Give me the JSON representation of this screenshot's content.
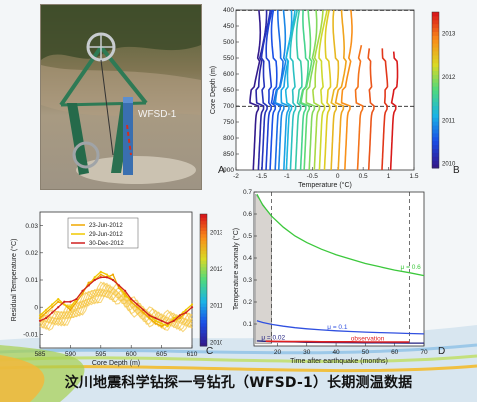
{
  "caption": "汶川地震科学钻探一号钻孔（WFSD-1）长期测温数据",
  "panels": {
    "a": {
      "letter": "A",
      "photo_label": "WFSD-1"
    },
    "b": {
      "letter": "B"
    },
    "c": {
      "letter": "C"
    },
    "d": {
      "letter": "D"
    }
  },
  "chart_data": [
    {
      "id": "B",
      "type": "line",
      "xlabel": "Temperature (°C)",
      "ylabel": "Core Depth (m)",
      "xlim": [
        -2,
        1.5
      ],
      "ylim": [
        400,
        900
      ],
      "y_inverted": true,
      "x_ticks": [
        -2,
        -1.5,
        -1,
        -0.5,
        0,
        0.5,
        1,
        1.5
      ],
      "y_ticks": [
        400,
        450,
        500,
        550,
        600,
        650,
        700,
        750,
        800,
        850,
        900
      ],
      "dashed_depths": [
        400,
        700
      ],
      "colorbar": {
        "ticks": [
          2010,
          2011,
          2012,
          2013
        ],
        "range": [
          2009.9,
          2013.5
        ]
      },
      "series_count": 24,
      "profile_x_offsets": [
        -1.55,
        -1.45,
        -1.38,
        -1.3,
        -1.22,
        -1.12,
        -1.05,
        -0.95,
        -0.9,
        -0.82,
        -0.72,
        -0.62,
        -0.55,
        -0.45,
        -0.35,
        -0.25,
        -0.15,
        -0.02,
        0.12,
        0.25,
        0.5,
        0.72,
        0.98,
        1.15
      ],
      "legend": "none"
    },
    {
      "id": "C",
      "type": "line",
      "xlabel": "Core Depth (m)",
      "ylabel": "Residual Temperature (°C)",
      "xlim": [
        585,
        610
      ],
      "ylim": [
        -0.015,
        0.035
      ],
      "x_ticks": [
        585,
        590,
        595,
        600,
        605,
        610
      ],
      "y_ticks": [
        -0.01,
        0,
        0.01,
        0.02,
        0.03
      ],
      "colorbar": {
        "ticks": [
          2010,
          2011,
          2012,
          2013
        ],
        "range": [
          2009.9,
          2013.5
        ]
      },
      "series": [
        {
          "name": "23-Jun-2012",
          "color": "#f0a800",
          "x": [
            585,
            586,
            587,
            588,
            589,
            590,
            591,
            592,
            593,
            594,
            595,
            596,
            597,
            598,
            599,
            600,
            601,
            602,
            603,
            604,
            605,
            606,
            607,
            608,
            609,
            610
          ],
          "y": [
            -0.004,
            -0.002,
            0.0,
            0.002,
            0.001,
            -0.001,
            0.002,
            0.005,
            0.009,
            0.01,
            0.012,
            0.011,
            0.012,
            0.007,
            0.005,
            0.002,
            0.0,
            -0.002,
            -0.004,
            -0.006,
            -0.007,
            -0.006,
            -0.005,
            -0.004,
            -0.002,
            0.0
          ]
        },
        {
          "name": "29-Jun-2012",
          "color": "#f0c800",
          "x": [
            585,
            586,
            587,
            588,
            589,
            590,
            591,
            592,
            593,
            594,
            595,
            596,
            597,
            598,
            599,
            600,
            601,
            602,
            603,
            604,
            605,
            606,
            607,
            608,
            609,
            610
          ],
          "y": [
            -0.003,
            -0.001,
            0.001,
            0.003,
            0.001,
            0.0,
            0.003,
            0.006,
            0.008,
            0.011,
            0.013,
            0.012,
            0.01,
            0.008,
            0.004,
            0.003,
            0.001,
            -0.001,
            -0.003,
            -0.005,
            -0.006,
            -0.007,
            -0.004,
            -0.003,
            -0.001,
            0.001
          ]
        },
        {
          "name": "30-Dec-2012",
          "color": "#d02020",
          "x": [
            585,
            586,
            587,
            588,
            589,
            590,
            591,
            592,
            593,
            594,
            595,
            596,
            597,
            598,
            599,
            600,
            601,
            602,
            603,
            604,
            605,
            606,
            607,
            608,
            609,
            610
          ],
          "y": [
            -0.005,
            -0.004,
            -0.002,
            0.0,
            0.002,
            0.002,
            0.003,
            0.006,
            0.008,
            0.01,
            0.011,
            0.011,
            0.01,
            0.008,
            0.006,
            0.003,
            0.001,
            -0.001,
            -0.003,
            -0.004,
            -0.005,
            -0.006,
            -0.005,
            -0.003,
            -0.002,
            0.0
          ]
        }
      ],
      "legend": "top-left"
    },
    {
      "id": "D",
      "type": "line",
      "xlabel": "Time after earthquake (months)",
      "ylabel": "Temperature anomaly (°C)",
      "xlim": [
        12,
        70
      ],
      "ylim": [
        0,
        0.7
      ],
      "x_ticks": [
        20,
        30,
        40,
        50,
        60,
        70
      ],
      "y_ticks": [
        0.1,
        0.2,
        0.3,
        0.4,
        0.5,
        0.6,
        0.7
      ],
      "dashed_months": [
        18,
        65
      ],
      "series": [
        {
          "name": "μ = 0.6",
          "color": "#3cc83c",
          "x": [
            13,
            15,
            18,
            22,
            26,
            30,
            35,
            40,
            45,
            50,
            55,
            60,
            65,
            70
          ],
          "y": [
            0.69,
            0.64,
            0.59,
            0.54,
            0.5,
            0.47,
            0.44,
            0.415,
            0.395,
            0.375,
            0.36,
            0.345,
            0.333,
            0.32
          ]
        },
        {
          "name": "μ = 0.1",
          "color": "#3050e0",
          "x": [
            13,
            15,
            18,
            22,
            26,
            30,
            35,
            40,
            45,
            50,
            55,
            60,
            65,
            70
          ],
          "y": [
            0.115,
            0.107,
            0.098,
            0.09,
            0.083,
            0.078,
            0.073,
            0.069,
            0.066,
            0.063,
            0.061,
            0.059,
            0.057,
            0.055
          ]
        },
        {
          "name": "μ = 0.02",
          "color": "#202080",
          "x": [
            13,
            15,
            18,
            22,
            26,
            30,
            35,
            40,
            45,
            50,
            55,
            60,
            65,
            70
          ],
          "y": [
            0.023,
            0.022,
            0.02,
            0.019,
            0.018,
            0.017,
            0.016,
            0.0155,
            0.015,
            0.0145,
            0.014,
            0.0135,
            0.013,
            0.013
          ]
        },
        {
          "name": "observation",
          "color": "#e02020",
          "x": [
            16,
            20,
            25,
            30,
            35,
            40,
            45,
            50,
            55,
            60,
            65
          ],
          "y": [
            0.022,
            0.021,
            0.02,
            0.02,
            0.019,
            0.019,
            0.019,
            0.018,
            0.018,
            0.018,
            0.018
          ]
        }
      ],
      "legend": "inline"
    }
  ]
}
